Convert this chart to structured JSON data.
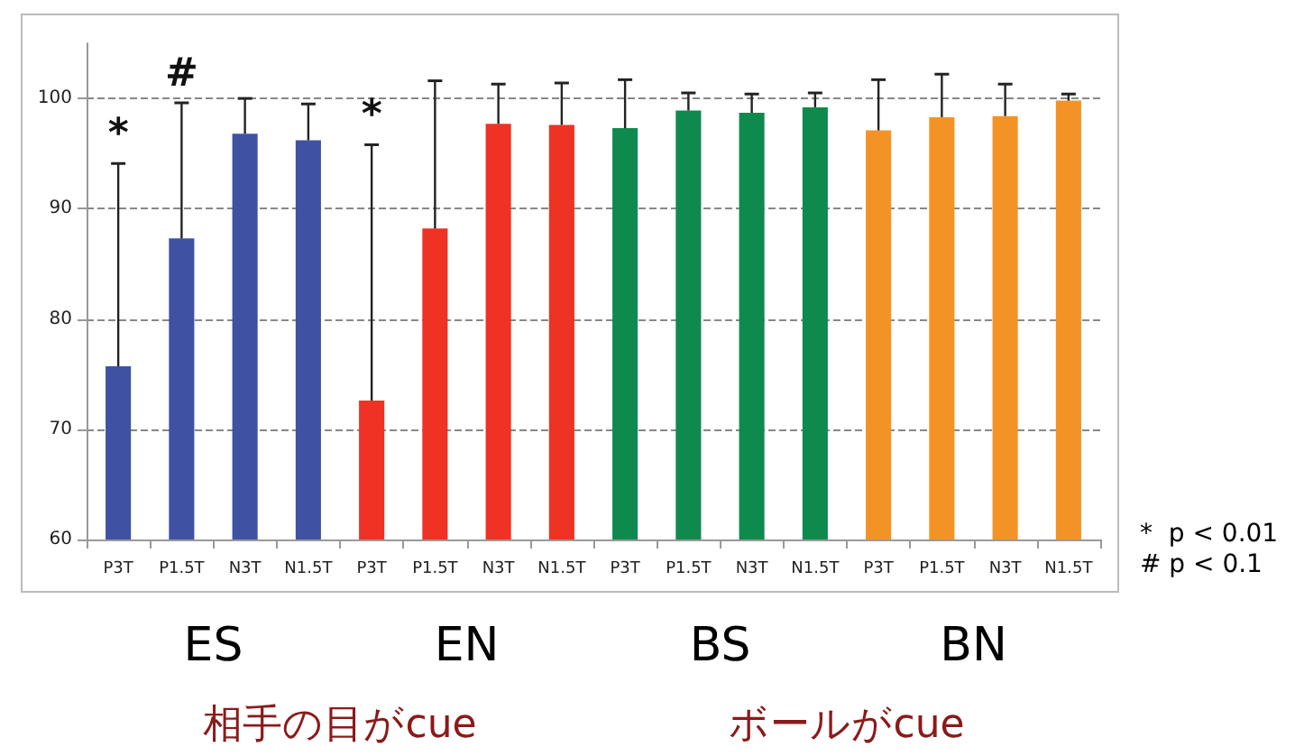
{
  "chart_data": {
    "type": "bar",
    "categories": [
      "P3T",
      "P1.5T",
      "N3T",
      "N1.5T",
      "P3T",
      "P1.5T",
      "N3T",
      "N1.5T",
      "P3T",
      "P1.5T",
      "N3T",
      "N1.5T",
      "P3T",
      "P1.5T",
      "N3T",
      "N1.5T"
    ],
    "values": [
      75.7,
      87.3,
      96.8,
      96.2,
      72.6,
      88.2,
      97.7,
      97.6,
      97.3,
      98.9,
      98.7,
      99.2,
      97.1,
      98.3,
      98.4,
      99.8
    ],
    "colors": [
      "#3f51a3",
      "#3f51a3",
      "#3f51a3",
      "#3f51a3",
      "#ee3224",
      "#ee3224",
      "#ee3224",
      "#ee3224",
      "#0f8a4e",
      "#0f8a4e",
      "#0f8a4e",
      "#0f8a4e",
      "#f39325",
      "#f39325",
      "#f39325",
      "#f39325"
    ],
    "errors": [
      [
        75.7,
        94.1
      ],
      [
        87.3,
        99.6
      ],
      [
        96.8,
        100.0
      ],
      [
        96.2,
        99.5
      ],
      [
        72.6,
        95.8
      ],
      [
        88.2,
        101.6
      ],
      [
        97.7,
        101.3
      ],
      [
        97.6,
        101.4
      ],
      [
        97.3,
        101.7
      ],
      [
        98.9,
        100.5
      ],
      [
        98.7,
        100.4
      ],
      [
        99.2,
        100.5
      ],
      [
        97.1,
        101.7
      ],
      [
        98.3,
        102.2
      ],
      [
        98.4,
        101.3
      ],
      [
        99.8,
        100.4
      ]
    ],
    "ylim": [
      60,
      105
    ],
    "yticks": [
      60,
      70,
      80,
      90,
      100
    ],
    "grid": "y",
    "annotations": [
      "ES",
      "EN",
      "BS",
      "BN",
      "相手の目がcue",
      "ボールがcue",
      "*  p < 0.01",
      "# p < 0.1",
      "*",
      "#",
      "*"
    ]
  }
}
